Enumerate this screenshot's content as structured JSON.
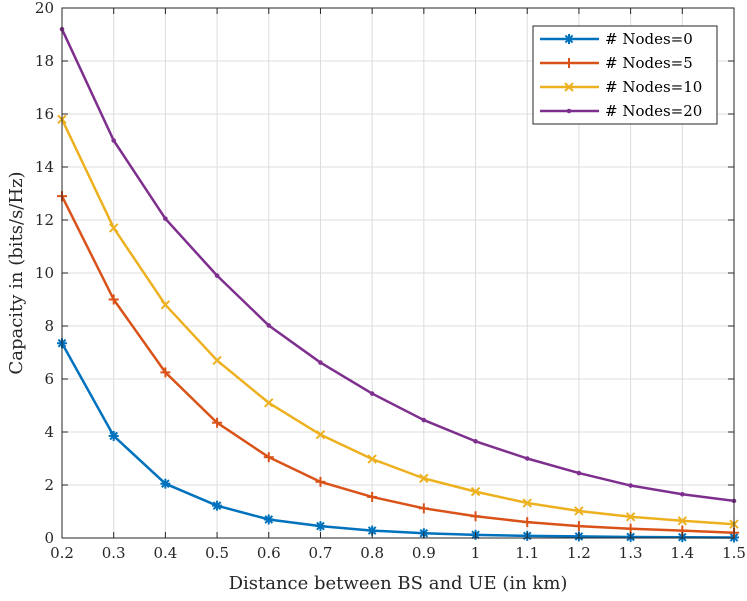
{
  "chart_data": {
    "type": "line",
    "title": "",
    "xlabel": "Distance between BS and UE (in km)",
    "ylabel": "Capacity in (bits/s/Hz)",
    "xlim": [
      0.2,
      1.5
    ],
    "ylim": [
      0,
      20
    ],
    "xticks": [
      "0.2",
      "0.3",
      "0.4",
      "0.5",
      "0.6",
      "0.7",
      "0.8",
      "0.9",
      "1",
      "1.1",
      "1.2",
      "1.3",
      "1.4",
      "1.5"
    ],
    "yticks": [
      "0",
      "2",
      "4",
      "6",
      "8",
      "10",
      "12",
      "14",
      "16",
      "18",
      "20"
    ],
    "grid": true,
    "legend_position": "top-right",
    "x": [
      0.2,
      0.3,
      0.4,
      0.5,
      0.6,
      0.7,
      0.8,
      0.9,
      1.0,
      1.1,
      1.2,
      1.3,
      1.4,
      1.5
    ],
    "series": [
      {
        "name": "# Nodes=0",
        "color": "#0072BD",
        "marker": "asterisk",
        "values": [
          7.35,
          3.85,
          2.05,
          1.22,
          0.7,
          0.45,
          0.28,
          0.18,
          0.12,
          0.08,
          0.06,
          0.04,
          0.03,
          0.02
        ]
      },
      {
        "name": "# Nodes=5",
        "color": "#D95319",
        "marker": "plus",
        "values": [
          12.9,
          9.0,
          6.25,
          4.35,
          3.05,
          2.12,
          1.55,
          1.12,
          0.82,
          0.6,
          0.45,
          0.35,
          0.28,
          0.2
        ]
      },
      {
        "name": "# Nodes=10",
        "color": "#EDB120",
        "marker": "x",
        "values": [
          15.8,
          11.7,
          8.8,
          6.7,
          5.1,
          3.9,
          2.98,
          2.25,
          1.75,
          1.32,
          1.02,
          0.8,
          0.65,
          0.52
        ]
      },
      {
        "name": "# Nodes=20",
        "color": "#7E2F8E",
        "marker": "dot",
        "values": [
          19.2,
          15.0,
          12.05,
          9.9,
          8.02,
          6.62,
          5.45,
          4.45,
          3.65,
          3.0,
          2.45,
          1.98,
          1.65,
          1.4
        ]
      }
    ]
  }
}
